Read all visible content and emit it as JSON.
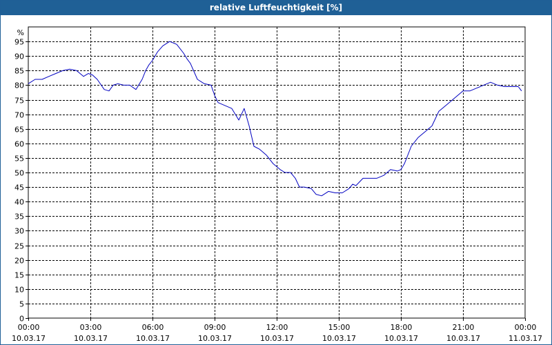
{
  "title": "relative Luftfeuchtigkeit [%]",
  "chart_data": {
    "type": "line",
    "title": "relative Luftfeuchtigkeit [%]",
    "ylabel": "%",
    "ylim": [
      0,
      100
    ],
    "yticks": [
      0,
      5,
      10,
      15,
      20,
      25,
      30,
      35,
      40,
      45,
      50,
      55,
      60,
      65,
      70,
      75,
      80,
      85,
      90,
      95
    ],
    "xlim": [
      0,
      24
    ],
    "xticks": [
      {
        "time": "00:00",
        "date": "10.03.17",
        "h": 0
      },
      {
        "time": "03:00",
        "date": "10.03.17",
        "h": 3
      },
      {
        "time": "06:00",
        "date": "10.03.17",
        "h": 6
      },
      {
        "time": "09:00",
        "date": "10.03.17",
        "h": 9
      },
      {
        "time": "12:00",
        "date": "10.03.17",
        "h": 12
      },
      {
        "time": "15:00",
        "date": "10.03.17",
        "h": 15
      },
      {
        "time": "18:00",
        "date": "10.03.17",
        "h": 18
      },
      {
        "time": "21:00",
        "date": "10.03.17",
        "h": 21
      },
      {
        "time": "00:00",
        "date": "11.03.17",
        "h": 24
      }
    ],
    "grid": true,
    "series": [
      {
        "color": "#0000c0",
        "x": [
          0,
          0.33,
          0.67,
          1.0,
          1.33,
          1.67,
          2.0,
          2.33,
          2.67,
          2.9,
          3.1,
          3.33,
          3.67,
          3.9,
          4.1,
          4.33,
          4.6,
          4.9,
          5.2,
          5.5,
          5.67,
          5.83,
          6.0,
          6.25,
          6.5,
          6.83,
          7.17,
          7.5,
          7.67,
          7.83,
          8.17,
          8.5,
          8.83,
          9.0,
          9.17,
          9.5,
          9.83,
          10.17,
          10.43,
          10.67,
          10.9,
          11.17,
          11.5,
          11.83,
          12.17,
          12.4,
          12.67,
          12.9,
          13.1,
          13.33,
          13.67,
          13.9,
          14.17,
          14.5,
          14.83,
          15.17,
          15.5,
          15.67,
          15.83,
          16.17,
          16.5,
          16.83,
          17.17,
          17.5,
          17.83,
          18.0,
          18.17,
          18.5,
          18.83,
          19.17,
          19.5,
          19.83,
          20.17,
          20.5,
          20.83,
          21.0,
          21.33,
          21.67,
          22.0,
          22.33,
          22.67,
          23.0,
          23.33,
          23.67,
          23.83
        ],
        "y": [
          80.5,
          82,
          82,
          83,
          84,
          85,
          85.5,
          85,
          83,
          84,
          83.5,
          82,
          78.5,
          78,
          80,
          80.5,
          80,
          80,
          78.5,
          82,
          85,
          87,
          88.5,
          91.5,
          93.5,
          95,
          94,
          91,
          89,
          87.5,
          82,
          80.5,
          80,
          76.5,
          74,
          73,
          72,
          68,
          72,
          66,
          59,
          58,
          56,
          53,
          51,
          50,
          50,
          48,
          45,
          45,
          44.5,
          42.5,
          42,
          43.5,
          43,
          43,
          44.5,
          46,
          45.5,
          48,
          48,
          48,
          49,
          51,
          50.5,
          51,
          53,
          59,
          62,
          64,
          66,
          71,
          73,
          75,
          77,
          78,
          78,
          79,
          80,
          81,
          80,
          79.5,
          79.5,
          79.5,
          78
        ]
      }
    ]
  }
}
